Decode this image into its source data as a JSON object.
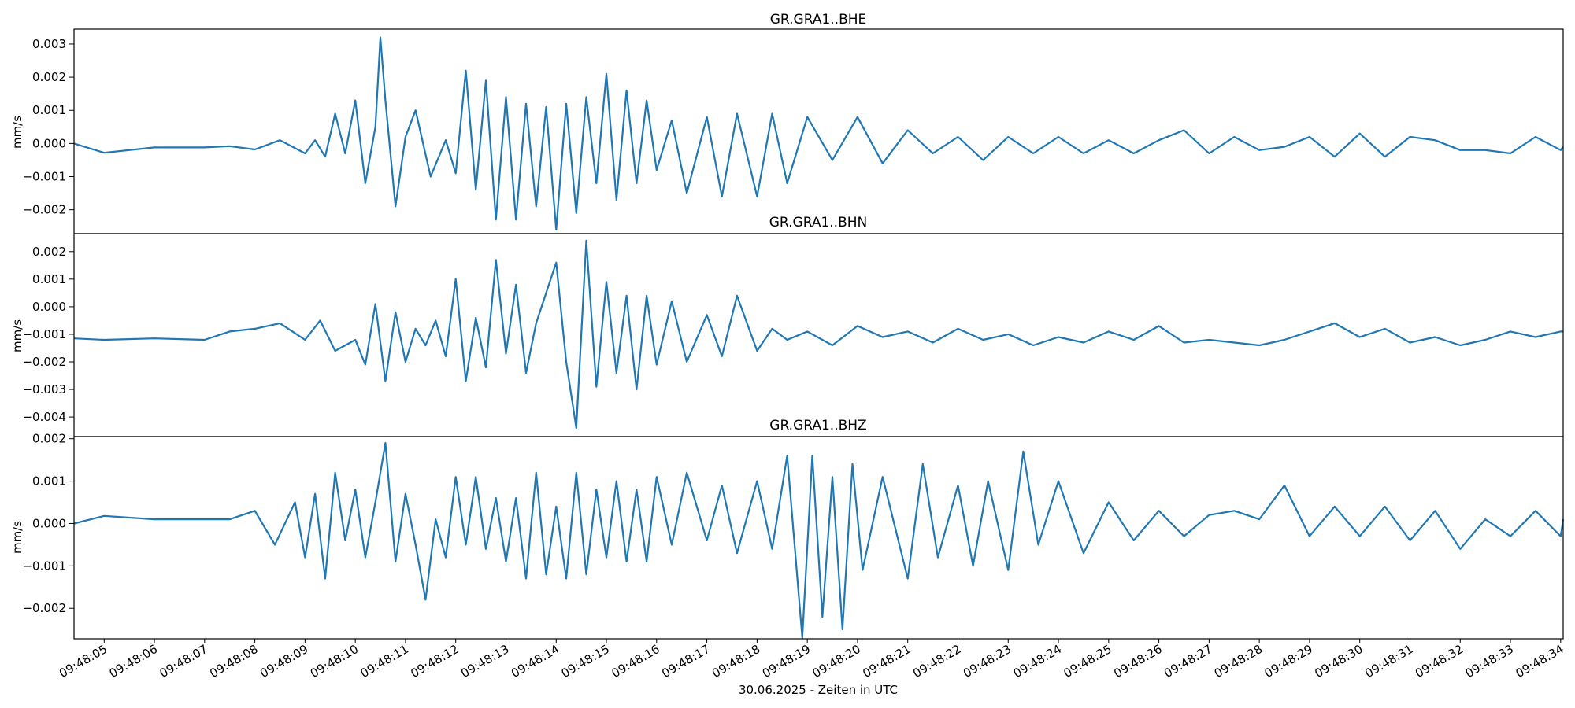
{
  "chart_data": {
    "type": "line",
    "xlabel": "30.06.2025 - Zeiten in UTC",
    "x_tick_labels": [
      "09:48:05",
      "09:48:06",
      "09:48:07",
      "09:48:08",
      "09:48:09",
      "09:48:10",
      "09:48:11",
      "09:48:12",
      "09:48:13",
      "09:48:14",
      "09:48:15",
      "09:48:16",
      "09:48:17",
      "09:48:18",
      "09:48:19",
      "09:48:20",
      "09:48:21",
      "09:48:22",
      "09:48:23",
      "09:48:24",
      "09:48:25",
      "09:48:26",
      "09:48:27",
      "09:48:28",
      "09:48:29",
      "09:48:30",
      "09:48:31",
      "09:48:32",
      "09:48:33",
      "09:48:34"
    ],
    "x_range_seconds": [
      4.4,
      34.05
    ],
    "line_color": "#1f77b4",
    "grid": false,
    "panels": [
      {
        "title": "GR.GRA1..BHE",
        "ylabel": "mm/s",
        "ylim": [
          -0.00272,
          0.00345
        ],
        "y_ticks": [
          -0.002,
          -0.001,
          0.0,
          0.001,
          0.002,
          0.003
        ],
        "y_tick_labels": [
          "−0.002",
          "−0.001",
          "0.000",
          "0.001",
          "0.002",
          "0.003"
        ],
        "x": [
          4.4,
          5,
          6,
          7,
          7.5,
          8,
          8.5,
          9,
          9.2,
          9.4,
          9.6,
          9.8,
          10,
          10.2,
          10.4,
          10.5,
          10.6,
          10.8,
          11,
          11.2,
          11.5,
          11.8,
          12,
          12.2,
          12.4,
          12.6,
          12.8,
          13,
          13.2,
          13.4,
          13.6,
          13.8,
          14,
          14.2,
          14.4,
          14.6,
          14.8,
          15,
          15.2,
          15.4,
          15.6,
          15.8,
          16,
          16.3,
          16.6,
          17,
          17.3,
          17.6,
          18,
          18.3,
          18.6,
          19,
          19.5,
          20,
          20.5,
          21,
          21.5,
          22,
          22.5,
          23,
          23.5,
          24,
          24.5,
          25,
          25.5,
          26,
          26.5,
          27,
          27.5,
          28,
          28.5,
          29,
          29.5,
          30,
          30.5,
          31,
          31.5,
          32,
          32.5,
          33,
          33.5,
          34,
          34.05
        ],
        "y": [
          0.0,
          -0.00028,
          -0.00012,
          -0.00012,
          -8e-05,
          -0.00018,
          0.0001,
          -0.0003,
          0.0001,
          -0.0004,
          0.0009,
          -0.0003,
          0.0013,
          -0.0012,
          0.0005,
          0.0032,
          0.0013,
          -0.0019,
          0.0002,
          0.001,
          -0.001,
          0.0001,
          -0.0009,
          0.0022,
          -0.0014,
          0.0019,
          -0.0023,
          0.0014,
          -0.0023,
          0.0012,
          -0.0019,
          0.0011,
          -0.0026,
          0.0012,
          -0.0021,
          0.0014,
          -0.0012,
          0.0021,
          -0.0017,
          0.0016,
          -0.0012,
          0.0013,
          -0.0008,
          0.0007,
          -0.0015,
          0.0008,
          -0.0016,
          0.0009,
          -0.0016,
          0.0009,
          -0.0012,
          0.0008,
          -0.0005,
          0.0008,
          -0.0006,
          0.0004,
          -0.0003,
          0.0002,
          -0.0005,
          0.0002,
          -0.0003,
          0.0002,
          -0.0003,
          0.0001,
          -0.0003,
          0.0001,
          0.0004,
          -0.0003,
          0.0002,
          -0.0002,
          -0.0001,
          0.0002,
          -0.0004,
          0.0003,
          -0.0004,
          0.0002,
          0.0001,
          -0.0002,
          -0.0002,
          -0.0003,
          0.0002,
          -0.0002,
          -0.0001
        ]
      },
      {
        "title": "GR.GRA1..BHN",
        "ylabel": "mm/s",
        "ylim": [
          -0.00471,
          0.00265
        ],
        "y_ticks": [
          -0.004,
          -0.003,
          -0.002,
          -0.001,
          0.0,
          0.001,
          0.002
        ],
        "y_tick_labels": [
          "−0.004",
          "−0.003",
          "−0.002",
          "−0.001",
          "0.000",
          "0.001",
          "0.002"
        ],
        "x": [
          4.4,
          5,
          6,
          7,
          7.5,
          8,
          8.5,
          9,
          9.3,
          9.6,
          10,
          10.2,
          10.4,
          10.6,
          10.8,
          11,
          11.2,
          11.4,
          11.6,
          11.8,
          12,
          12.2,
          12.4,
          12.6,
          12.8,
          13,
          13.2,
          13.4,
          13.6,
          13.8,
          14,
          14.2,
          14.4,
          14.6,
          14.8,
          15,
          15.2,
          15.4,
          15.6,
          15.8,
          16,
          16.3,
          16.6,
          17,
          17.3,
          17.6,
          18,
          18.3,
          18.6,
          19,
          19.5,
          20,
          20.5,
          21,
          21.5,
          22,
          22.5,
          23,
          23.5,
          24,
          24.5,
          25,
          25.5,
          26,
          26.5,
          27,
          27.5,
          28,
          28.5,
          29,
          29.5,
          30,
          30.5,
          31,
          31.5,
          32,
          32.5,
          33,
          33.5,
          34,
          34.05
        ],
        "y": [
          -0.00115,
          -0.0012,
          -0.00115,
          -0.0012,
          -0.0009,
          -0.0008,
          -0.0006,
          -0.0012,
          -0.0005,
          -0.0016,
          -0.0012,
          -0.0021,
          0.0001,
          -0.0027,
          -0.0002,
          -0.002,
          -0.0008,
          -0.0014,
          -0.0005,
          -0.0018,
          0.001,
          -0.0027,
          -0.0004,
          -0.0022,
          0.0017,
          -0.0017,
          0.0008,
          -0.0024,
          -0.0006,
          0.0005,
          0.0016,
          -0.002,
          -0.0044,
          0.0024,
          -0.0029,
          0.0009,
          -0.0024,
          0.0004,
          -0.003,
          0.0004,
          -0.0021,
          0.0002,
          -0.002,
          -0.0003,
          -0.0018,
          0.0004,
          -0.0016,
          -0.0008,
          -0.0012,
          -0.0009,
          -0.0014,
          -0.0007,
          -0.0011,
          -0.0009,
          -0.0013,
          -0.0008,
          -0.0012,
          -0.001,
          -0.0014,
          -0.0011,
          -0.0013,
          -0.0009,
          -0.0012,
          -0.0007,
          -0.0013,
          -0.0012,
          -0.0013,
          -0.0014,
          -0.0012,
          -0.0009,
          -0.0006,
          -0.0011,
          -0.0008,
          -0.0013,
          -0.0011,
          -0.0014,
          -0.0012,
          -0.0009,
          -0.0011,
          -0.0009,
          -0.0009
        ]
      },
      {
        "title": "GR.GRA1..BHZ",
        "ylabel": "mm/s",
        "ylim": [
          -0.00272,
          0.00205
        ],
        "y_ticks": [
          -0.002,
          -0.001,
          0.0,
          0.001,
          0.002
        ],
        "y_tick_labels": [
          "−0.002",
          "−0.001",
          "0.000",
          "0.001",
          "0.002"
        ],
        "x": [
          4.4,
          5,
          6,
          7,
          7.5,
          8,
          8.4,
          8.8,
          9,
          9.2,
          9.4,
          9.6,
          9.8,
          10,
          10.2,
          10.4,
          10.6,
          10.8,
          11,
          11.2,
          11.4,
          11.6,
          11.8,
          12,
          12.2,
          12.4,
          12.6,
          12.8,
          13,
          13.2,
          13.4,
          13.6,
          13.8,
          14,
          14.2,
          14.4,
          14.6,
          14.8,
          15,
          15.2,
          15.4,
          15.6,
          15.8,
          16,
          16.3,
          16.6,
          17,
          17.3,
          17.6,
          18,
          18.3,
          18.6,
          18.9,
          19.1,
          19.3,
          19.5,
          19.7,
          19.9,
          20.1,
          20.5,
          21,
          21.3,
          21.6,
          22,
          22.3,
          22.6,
          23,
          23.3,
          23.6,
          24,
          24.5,
          25,
          25.5,
          26,
          26.5,
          27,
          27.5,
          28,
          28.5,
          29,
          29.5,
          30,
          30.5,
          31,
          31.5,
          32,
          32.5,
          33,
          33.5,
          34,
          34.05
        ],
        "y": [
          0.0,
          0.00018,
          0.0001,
          0.0001,
          0.0001,
          0.0003,
          -0.0005,
          0.0005,
          -0.0008,
          0.0007,
          -0.0013,
          0.0012,
          -0.0004,
          0.0008,
          -0.0008,
          0.0005,
          0.0019,
          -0.0009,
          0.0007,
          -0.0005,
          -0.0018,
          0.0001,
          -0.0008,
          0.0011,
          -0.0005,
          0.0011,
          -0.0006,
          0.0006,
          -0.0009,
          0.0006,
          -0.0013,
          0.0012,
          -0.0012,
          0.0004,
          -0.0013,
          0.0012,
          -0.0012,
          0.0008,
          -0.0008,
          0.001,
          -0.0009,
          0.0008,
          -0.0009,
          0.0011,
          -0.0005,
          0.0012,
          -0.0004,
          0.0009,
          -0.0007,
          0.001,
          -0.0006,
          0.0016,
          -0.0027,
          0.0016,
          -0.0022,
          0.0011,
          -0.0025,
          0.0014,
          -0.0011,
          0.0011,
          -0.0013,
          0.0014,
          -0.0008,
          0.0009,
          -0.001,
          0.001,
          -0.0011,
          0.0017,
          -0.0005,
          0.001,
          -0.0007,
          0.0005,
          -0.0004,
          0.0003,
          -0.0003,
          0.0002,
          0.0003,
          0.0001,
          0.0009,
          -0.0003,
          0.0004,
          -0.0003,
          0.0004,
          -0.0004,
          0.0003,
          -0.0006,
          0.0001,
          -0.0003,
          0.0003,
          -0.0003,
          0.0001
        ]
      }
    ]
  }
}
